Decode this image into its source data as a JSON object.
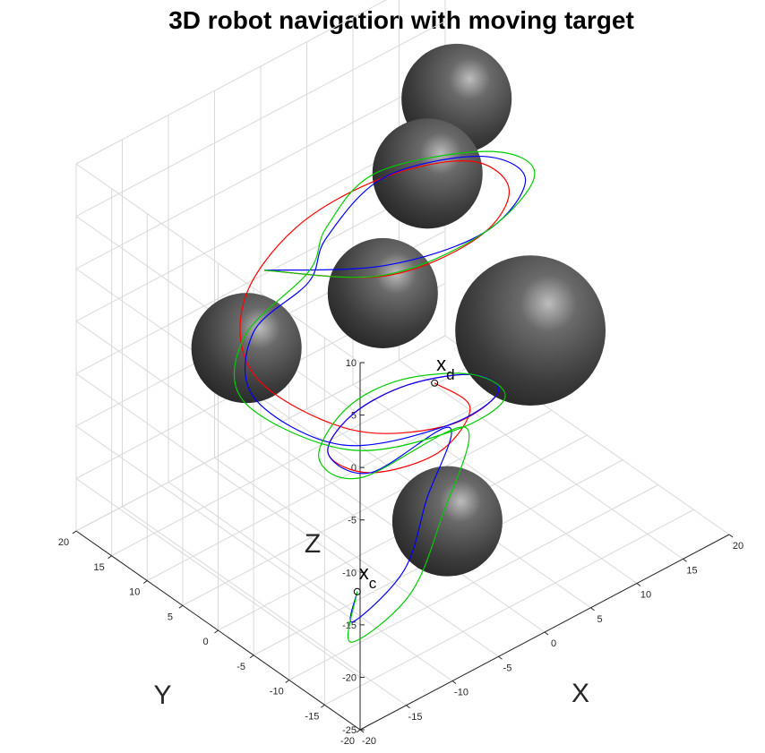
{
  "chart_data": {
    "type": "line3d",
    "title": "3D robot navigation with moving target",
    "xlabel": "X",
    "ylabel": "Y",
    "zlabel": "Z",
    "xlim": [
      -20,
      20
    ],
    "ylim": [
      -20,
      20
    ],
    "zlim": [
      -25,
      10
    ],
    "x_ticks": [
      -20,
      -15,
      -10,
      -5,
      0,
      5,
      10,
      15,
      20
    ],
    "y_ticks": [
      -20,
      -15,
      -10,
      -5,
      0,
      5,
      10,
      15,
      20
    ],
    "z_ticks": [
      -25,
      -20,
      -15,
      -10,
      -5,
      0,
      5,
      10
    ],
    "grid": true,
    "obstacles": [
      {
        "center": [
          -6,
          -5,
          3
        ],
        "radius": 3.3,
        "color": "#555555"
      },
      {
        "center": [
          12,
          8,
          7
        ],
        "radius": 3.3,
        "color": "#555555"
      },
      {
        "center": [
          5,
          3,
          5.5
        ],
        "radius": 3.3,
        "color": "#555555"
      },
      {
        "center": [
          -10,
          9,
          -7
        ],
        "radius": 3.3,
        "color": "#555555"
      },
      {
        "center": [
          10,
          -5,
          -8
        ],
        "radius": 4.5,
        "color": "#555555"
      },
      {
        "center": [
          1,
          -5,
          -22
        ],
        "radius": 3.3,
        "color": "#555555"
      }
    ],
    "series": [
      {
        "color": "#ff0000",
        "points": [
          [
            -15,
            0,
            7
          ],
          [
            -8,
            -8,
            7
          ],
          [
            2,
            -8,
            6
          ],
          [
            10,
            -2,
            4
          ],
          [
            12,
            6,
            2
          ],
          [
            8,
            13,
            -1
          ],
          [
            0,
            15,
            -3
          ],
          [
            -8,
            12,
            -5
          ],
          [
            -12,
            5,
            -7
          ],
          [
            -8,
            -3,
            -10
          ],
          [
            0,
            -6,
            -12
          ],
          [
            8,
            -3,
            -14
          ],
          [
            10,
            3,
            -16
          ],
          [
            6,
            7,
            -17
          ],
          [
            0,
            7,
            -17
          ],
          [
            -5,
            4,
            -17
          ],
          [
            -5,
            -2,
            -16
          ],
          [
            0,
            -5,
            -15
          ],
          [
            5,
            -3,
            -14
          ],
          [
            5,
            2,
            -14
          ]
        ]
      },
      {
        "color": "#0000ff",
        "points": [
          [
            -15,
            0,
            7
          ],
          [
            -8,
            -8,
            8
          ],
          [
            2,
            -9,
            7
          ],
          [
            11,
            -3,
            5
          ],
          [
            13,
            6,
            2
          ],
          [
            8,
            13,
            -1
          ],
          [
            1,
            12,
            -3
          ],
          [
            -4,
            8,
            -3
          ],
          [
            -10,
            8,
            -5
          ],
          [
            -13,
            4,
            -8
          ],
          [
            -9,
            -3,
            -11
          ],
          [
            0,
            -6,
            -12
          ],
          [
            8,
            -3,
            -14
          ],
          [
            10,
            3,
            -16
          ],
          [
            6,
            7,
            -17
          ],
          [
            0,
            7,
            -17
          ],
          [
            -5,
            4,
            -17
          ],
          [
            -5,
            -2,
            -16
          ],
          [
            2,
            -4,
            -14
          ],
          [
            -2,
            -6,
            -18
          ],
          [
            -6,
            -8,
            -22
          ],
          [
            -10,
            -6,
            -26
          ],
          [
            -8,
            -4,
            -25
          ]
        ]
      },
      {
        "color": "#00cc00",
        "points": [
          [
            -15,
            0,
            7
          ],
          [
            -9,
            -9,
            8
          ],
          [
            2,
            -9,
            7
          ],
          [
            12,
            -3,
            5
          ],
          [
            14,
            6,
            2
          ],
          [
            8,
            14,
            -1
          ],
          [
            1,
            12,
            -2
          ],
          [
            -4,
            8,
            -2
          ],
          [
            -11,
            8,
            -5
          ],
          [
            -14,
            4,
            -8
          ],
          [
            -9,
            -4,
            -11
          ],
          [
            0,
            -7,
            -12
          ],
          [
            8,
            -4,
            -14
          ],
          [
            10,
            3,
            -16
          ],
          [
            6,
            8,
            -17
          ],
          [
            0,
            8,
            -17
          ],
          [
            -6,
            4,
            -17
          ],
          [
            -6,
            -2,
            -16
          ],
          [
            3,
            -5,
            -14
          ],
          [
            -2,
            -8,
            -19
          ],
          [
            -7,
            -10,
            -23
          ],
          [
            -11,
            -7,
            -27
          ],
          [
            -8,
            -4,
            -25
          ]
        ]
      }
    ],
    "markers": [
      {
        "label": "x",
        "subscript": "d",
        "position": [
          5,
          2,
          -14
        ]
      },
      {
        "label": "x",
        "subscript": "c",
        "position": [
          -8,
          -4,
          -25
        ]
      }
    ]
  }
}
